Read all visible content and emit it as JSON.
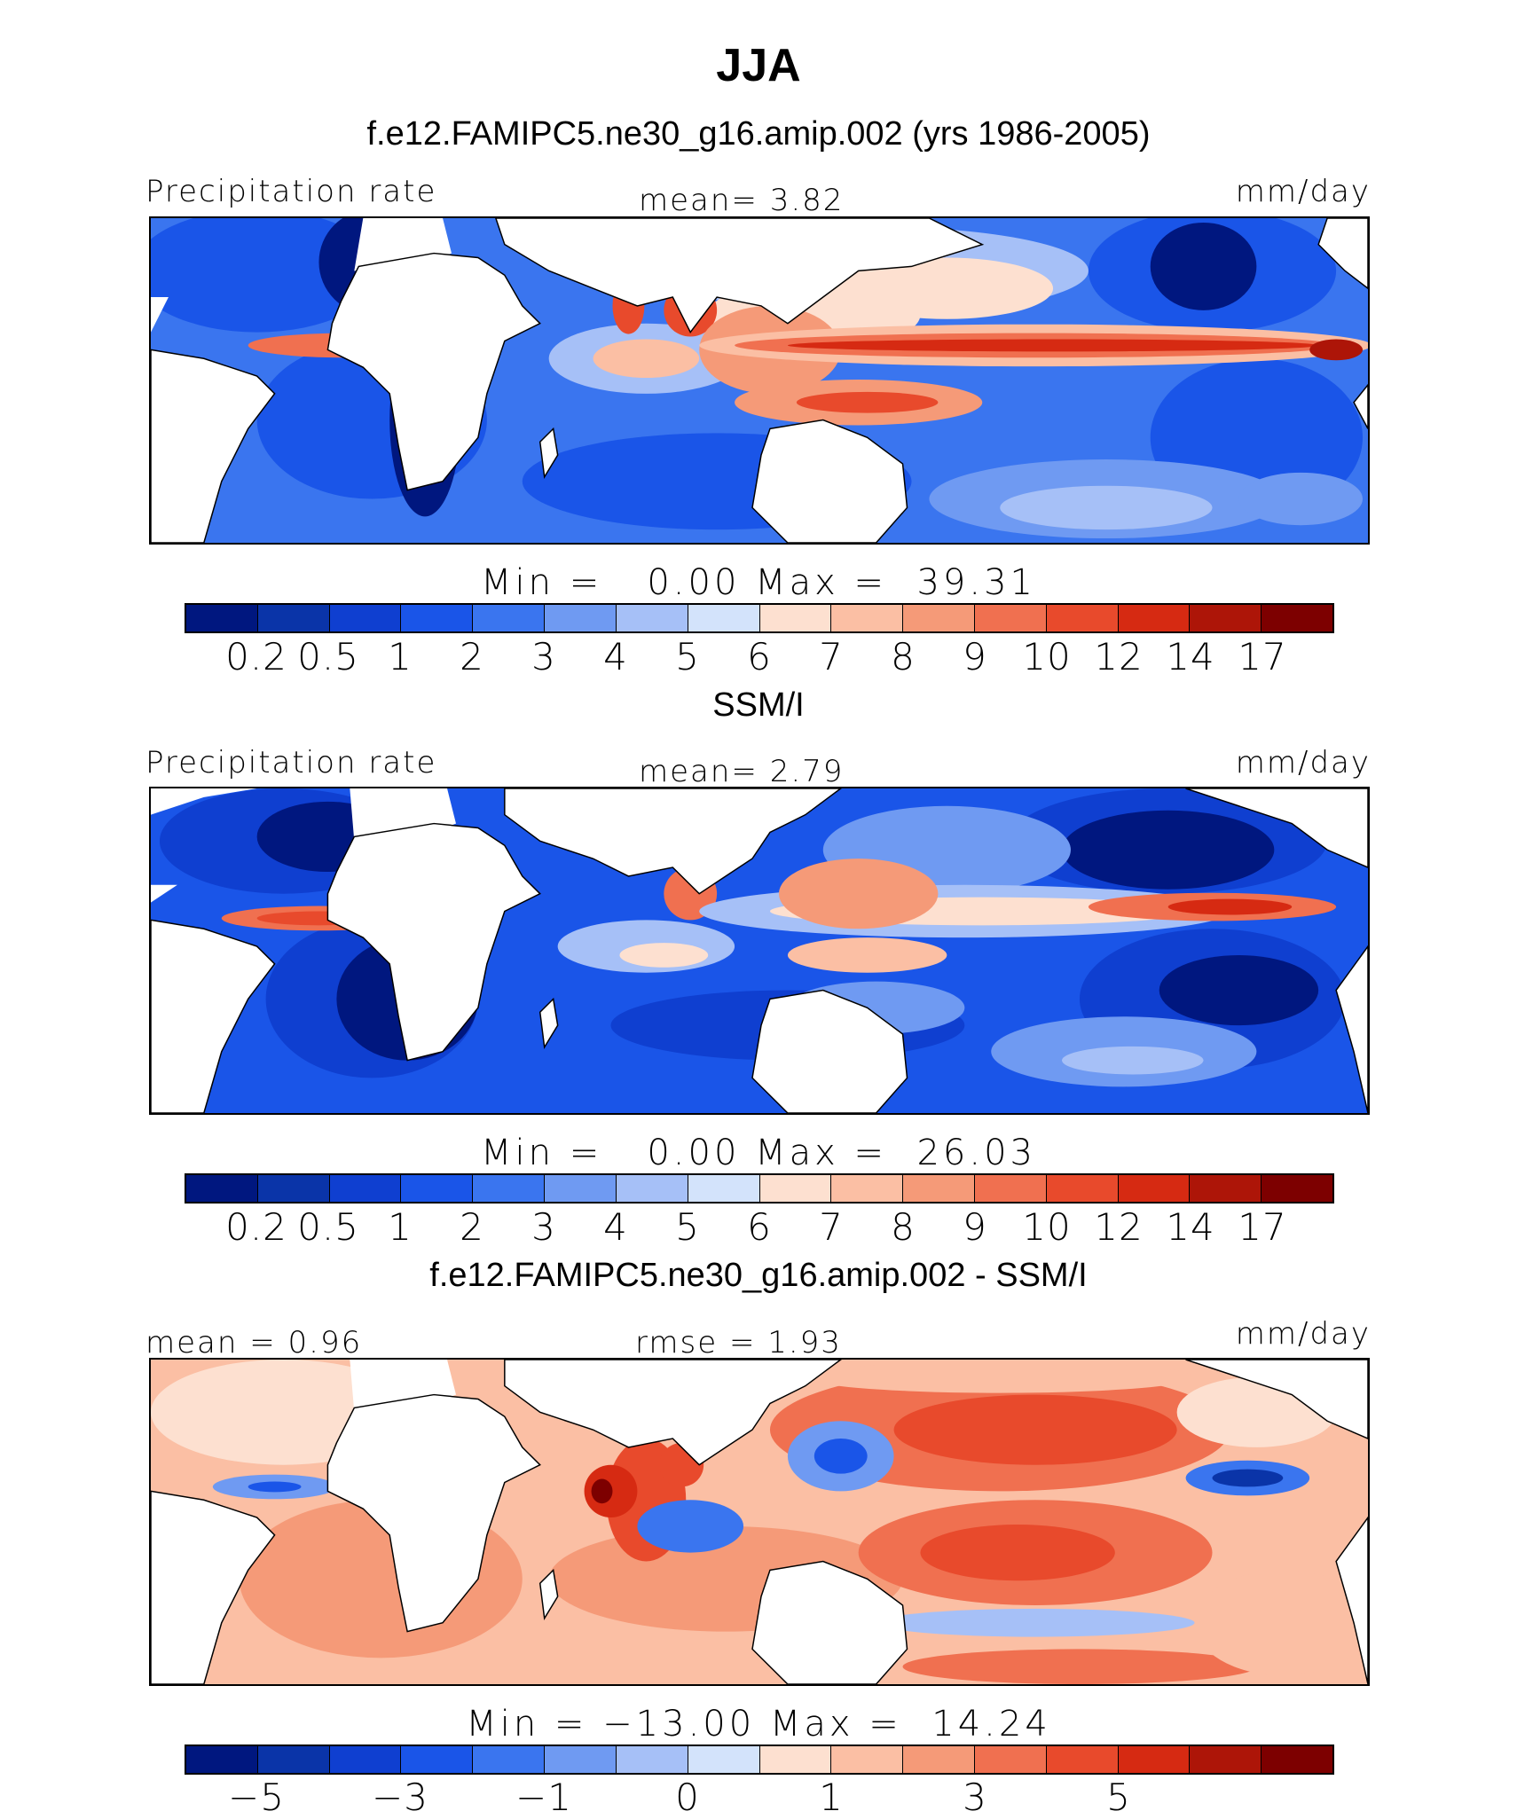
{
  "title": "JJA",
  "panels": [
    {
      "heading": "f.e12.FAMIPC5.ne30_g16.amip.002 (yrs 1986-2005)",
      "left_label": "Precipitation rate",
      "center_label": "mean=   3.82",
      "right_label": "mm/day",
      "minmax": "Min =   0.00 Max =  39.31",
      "colorbar": [
        "#00177f",
        "#0a34a8",
        "#0f3fd0",
        "#1a55e8",
        "#3a75ef",
        "#6f9af2",
        "#a6c0f7",
        "#d3e3fb",
        "#fde0d0",
        "#fbbfa4",
        "#f59a78",
        "#f07050",
        "#e84a2c",
        "#d62a12",
        "#ad1508",
        "#7d0000"
      ],
      "ticks": [
        "0.2",
        "0.5",
        "1",
        "2",
        "3",
        "4",
        "5",
        "6",
        "7",
        "8",
        "9",
        "10",
        "12",
        "14",
        "17"
      ]
    },
    {
      "heading": "SSM/I",
      "left_label": "Precipitation rate",
      "center_label": "mean=   2.79",
      "right_label": "mm/day",
      "minmax": "Min =   0.00 Max =  26.03",
      "colorbar": [
        "#00177f",
        "#0a34a8",
        "#0f3fd0",
        "#1a55e8",
        "#3a75ef",
        "#6f9af2",
        "#a6c0f7",
        "#d3e3fb",
        "#fde0d0",
        "#fbbfa4",
        "#f59a78",
        "#f07050",
        "#e84a2c",
        "#d62a12",
        "#ad1508",
        "#7d0000"
      ],
      "ticks": [
        "0.2",
        "0.5",
        "1",
        "2",
        "3",
        "4",
        "5",
        "6",
        "7",
        "8",
        "9",
        "10",
        "12",
        "14",
        "17"
      ]
    },
    {
      "heading": "f.e12.FAMIPC5.ne30_g16.amip.002 - SSM/I",
      "left_label": "mean =   0.96",
      "center_label": "rmse =   1.93",
      "right_label": "mm/day",
      "minmax": "Min = −13.00 Max =  14.24",
      "colorbar": [
        "#00177f",
        "#0a34a8",
        "#0f3fd0",
        "#1a55e8",
        "#3a75ef",
        "#6f9af2",
        "#a6c0f7",
        "#d3e3fb",
        "#fde0d0",
        "#fbbfa4",
        "#f59a78",
        "#f07050",
        "#e84a2c",
        "#d62a12",
        "#ad1508",
        "#7d0000"
      ],
      "ticks": [
        "−5",
        "−3",
        "−1",
        "0",
        "1",
        "3",
        "5"
      ]
    }
  ]
}
